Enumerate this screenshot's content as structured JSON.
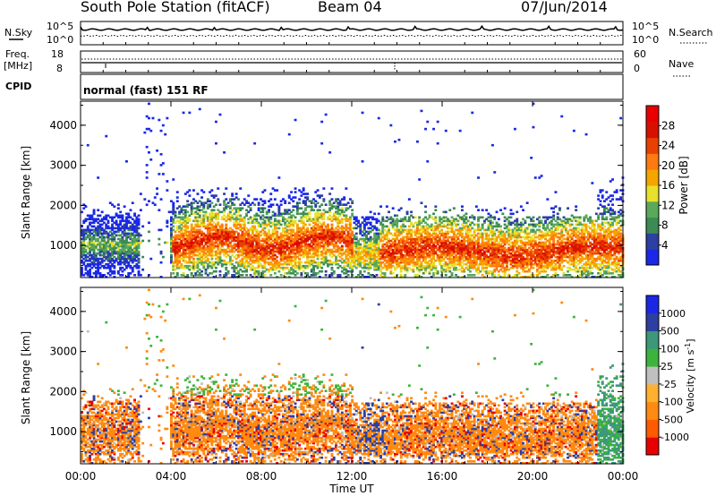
{
  "header": {
    "station": "South Pole Station (fitACF)",
    "beam": "Beam 04",
    "date": "07/Jun/2014"
  },
  "summary": {
    "nsky_label": "N.Sky",
    "nsearch_label": "N.Search",
    "freq_label_top": "Freq.",
    "freq_label_unit": "[MHz]",
    "nave_label": "Nave",
    "cpid_label": "CPID",
    "cpid_text": "normal (fast) 151 RF",
    "noise_ticks_left": [
      "10^5",
      "10^0"
    ],
    "noise_ticks_right": [
      "10^5",
      "10^0"
    ],
    "freq_ticks": [
      "18",
      "8"
    ],
    "nave_ticks": [
      "60",
      "0"
    ]
  },
  "colors": {
    "power_scale": [
      "#1a28e6",
      "#2d3fa0",
      "#3c8a54",
      "#5aa85a",
      "#e8e02a",
      "#f5a500",
      "#ff7a10",
      "#e84000",
      "#d81000",
      "#e80000"
    ],
    "velocity_scale": [
      "#e80000",
      "#ff5a00",
      "#ff8a10",
      "#ffb030",
      "#bfbfbf",
      "#3cb43c",
      "#3c9878",
      "#2d3fa0",
      "#1a28e6"
    ]
  },
  "chart_data": [
    {
      "type": "heatmap",
      "name": "power",
      "ylabel": "Slant Range [km]",
      "yticks": [
        "1000",
        "2000",
        "3000",
        "4000"
      ],
      "ylim": [
        200,
        4600
      ],
      "colorbar_label": "Power [dB]",
      "colorbar_ticks": [
        "4",
        "8",
        "12",
        "16",
        "20",
        "24",
        "28"
      ],
      "colorbar_range": [
        0,
        32
      ],
      "grid": false
    },
    {
      "type": "heatmap",
      "name": "velocity",
      "ylabel": "Slant Range [km]",
      "yticks": [
        "1000",
        "2000",
        "3000",
        "4000"
      ],
      "ylim": [
        200,
        4600
      ],
      "colorbar_label": "Velocity [m s^-1]",
      "colorbar_ticks": [
        "1000",
        "500",
        "100",
        "25",
        "-25",
        "-100",
        "-500",
        "-1000"
      ],
      "grid": false
    }
  ],
  "xaxis": {
    "label": "Time UT",
    "ticks": [
      "00:00",
      "04:00",
      "08:00",
      "12:00",
      "16:00",
      "20:00",
      "00:00"
    ],
    "range_hours": [
      0,
      24
    ]
  }
}
